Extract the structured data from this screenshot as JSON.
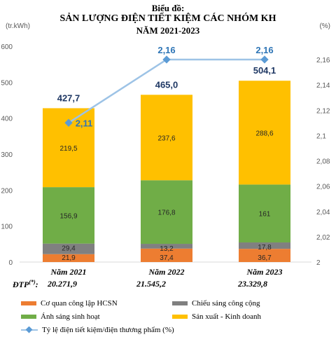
{
  "title": {
    "line1": "Biểu đồ:",
    "line2": "SẢN LƯỢNG ĐIỆN TIẾT KIỆM CÁC NHÓM KH",
    "line3": "NĂM 2021-2023"
  },
  "left_unit": "(tr.kWh)",
  "right_unit": "(%)",
  "dtp": {
    "label": "ĐTP",
    "sup": "(*)",
    "colon": ":",
    "values": [
      "20.271,9",
      "21.545,2",
      "23.329,8"
    ]
  },
  "colors": {
    "co_quan": "#ED7D31",
    "chieu_sang": "#808080",
    "anh_sang": "#70AD47",
    "san_xuat": "#FFC000",
    "line": "#9DC3E6",
    "marker": "#5B9BD5",
    "total_label": "#1F3864",
    "rate_label": "#2E75B6"
  },
  "chart_data": {
    "type": "bar",
    "stacked": true,
    "categories": [
      "Năm 2021",
      "Năm 2022",
      "Năm 2023"
    ],
    "series": [
      {
        "name": "Cơ quan công lập HCSN",
        "values": [
          21.9,
          37.4,
          36.7
        ],
        "labels": [
          "21,9",
          "37,4",
          "36,7"
        ],
        "colorKey": "co_quan"
      },
      {
        "name": "Chiếu sáng công cộng",
        "values": [
          29.4,
          13.2,
          17.8
        ],
        "labels": [
          "29,4",
          "13,2",
          "17,8"
        ],
        "colorKey": "chieu_sang"
      },
      {
        "name": "Ánh sáng sinh hoạt",
        "values": [
          156.9,
          176.8,
          161
        ],
        "labels": [
          "156,9",
          "176,8",
          "161"
        ],
        "colorKey": "anh_sang"
      },
      {
        "name": "Sản xuất - Kinh doanh",
        "values": [
          219.5,
          237.6,
          288.6
        ],
        "labels": [
          "219,5",
          "237,6",
          "288,6"
        ],
        "colorKey": "san_xuat"
      }
    ],
    "totals": [
      427.7,
      465.0,
      504.1
    ],
    "total_labels": [
      "427,7",
      "465,0",
      "504,1"
    ],
    "line_series": {
      "name": "Tỷ lệ điện tiết kiệm/điện thương phẩm (%)",
      "values": [
        2.11,
        2.16,
        2.16
      ],
      "labels": [
        "2,11",
        "2,16",
        "2,16"
      ],
      "axis": "right"
    },
    "ylim": [
      0,
      600
    ],
    "yticks": [
      0,
      100,
      200,
      300,
      400,
      500,
      600
    ],
    "y2lim": [
      2.0,
      2.16
    ],
    "y2ticks": [
      "2",
      "2,02",
      "2,04",
      "2,06",
      "2,08",
      "2,1",
      "2,12",
      "2,14",
      "2,16"
    ],
    "legend_position": "bottom",
    "grid": false
  }
}
